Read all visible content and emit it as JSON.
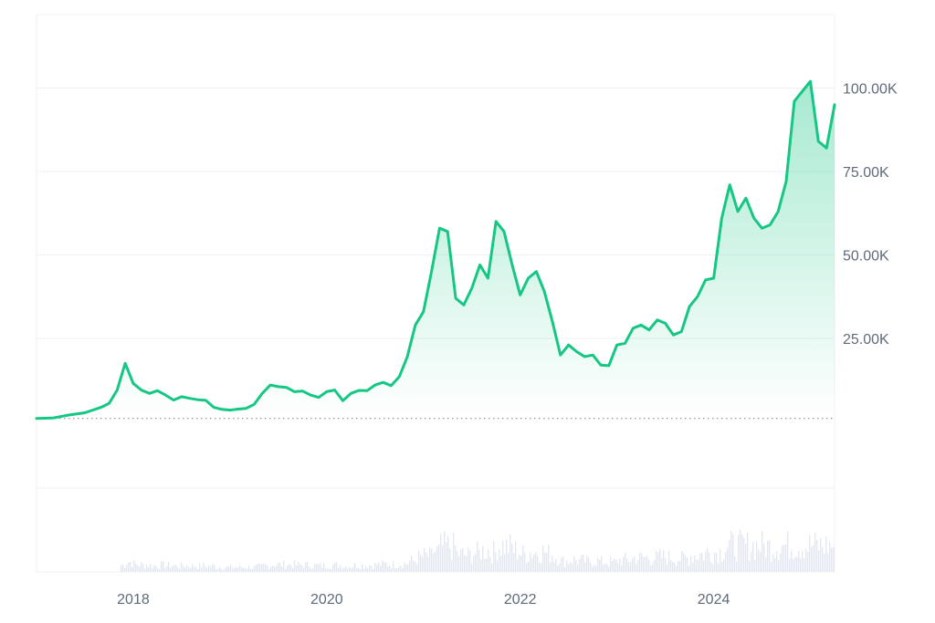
{
  "chart_data": {
    "type": "area",
    "title": "",
    "xlabel": "",
    "ylabel": "",
    "x_ticks": [
      "2018",
      "2020",
      "2022",
      "2024"
    ],
    "y_ticks": [
      "25.00K",
      "50.00K",
      "75.00K",
      "100.00K"
    ],
    "y_tick_values": [
      25000,
      50000,
      75000,
      100000
    ],
    "ylim": [
      -45000,
      122000
    ],
    "xlim": [
      "2017-01",
      "2025-04"
    ],
    "grid": true,
    "baseline": 1000,
    "colors": {
      "line": "#16c784",
      "area_top": "#16c784",
      "volume": "#e4e8ee",
      "grid": "#eef1f4",
      "baseline": "#7a7f87",
      "axis_text": "#5f6b7a"
    },
    "series": [
      {
        "x": [
          "2017-01",
          "2017-03",
          "2017-05",
          "2017-07",
          "2017-09",
          "2017-10",
          "2017-11",
          "2017-12",
          "2018-01",
          "2018-02",
          "2018-03",
          "2018-04",
          "2018-05",
          "2018-06",
          "2018-07",
          "2018-08",
          "2018-09",
          "2018-10",
          "2018-11",
          "2018-12",
          "2019-01",
          "2019-02",
          "2019-03",
          "2019-04",
          "2019-05",
          "2019-06",
          "2019-07",
          "2019-08",
          "2019-09",
          "2019-10",
          "2019-11",
          "2019-12",
          "2020-01",
          "2020-02",
          "2020-03",
          "2020-04",
          "2020-05",
          "2020-06",
          "2020-07",
          "2020-08",
          "2020-09",
          "2020-10",
          "2020-11",
          "2020-12",
          "2021-01",
          "2021-02",
          "2021-03",
          "2021-04",
          "2021-05",
          "2021-06",
          "2021-07",
          "2021-08",
          "2021-09",
          "2021-10",
          "2021-11",
          "2021-12",
          "2022-01",
          "2022-02",
          "2022-03",
          "2022-04",
          "2022-05",
          "2022-06",
          "2022-07",
          "2022-08",
          "2022-09",
          "2022-10",
          "2022-11",
          "2022-12",
          "2023-01",
          "2023-02",
          "2023-03",
          "2023-04",
          "2023-05",
          "2023-06",
          "2023-07",
          "2023-08",
          "2023-09",
          "2023-10",
          "2023-11",
          "2023-12",
          "2024-01",
          "2024-02",
          "2024-03",
          "2024-04",
          "2024-05",
          "2024-06",
          "2024-07",
          "2024-08",
          "2024-09",
          "2024-10",
          "2024-11",
          "2024-12",
          "2025-01",
          "2025-02",
          "2025-03",
          "2025-04"
        ],
        "values": [
          1000,
          1100,
          2000,
          2700,
          4300,
          5500,
          9500,
          17500,
          11500,
          9500,
          8500,
          9300,
          8000,
          6500,
          7500,
          7000,
          6600,
          6400,
          4300,
          3700,
          3500,
          3800,
          4000,
          5200,
          8500,
          11000,
          10500,
          10300,
          9000,
          9200,
          8000,
          7300,
          9000,
          9500,
          6300,
          8500,
          9400,
          9300,
          11000,
          11800,
          10800,
          13500,
          19500,
          29000,
          33000,
          45000,
          58000,
          57000,
          37000,
          35000,
          40000,
          47000,
          43000,
          60000,
          57000,
          47000,
          38000,
          43000,
          45000,
          39000,
          30000,
          20000,
          23000,
          21000,
          19500,
          20000,
          17000,
          16800,
          23000,
          23500,
          28000,
          29000,
          27500,
          30500,
          29500,
          26000,
          27000,
          34500,
          37500,
          42500,
          43000,
          61000,
          71000,
          63000,
          67000,
          61000,
          58000,
          59000,
          63000,
          72000,
          96000,
          99000,
          102000,
          84000,
          82000,
          95000
        ]
      }
    ]
  }
}
